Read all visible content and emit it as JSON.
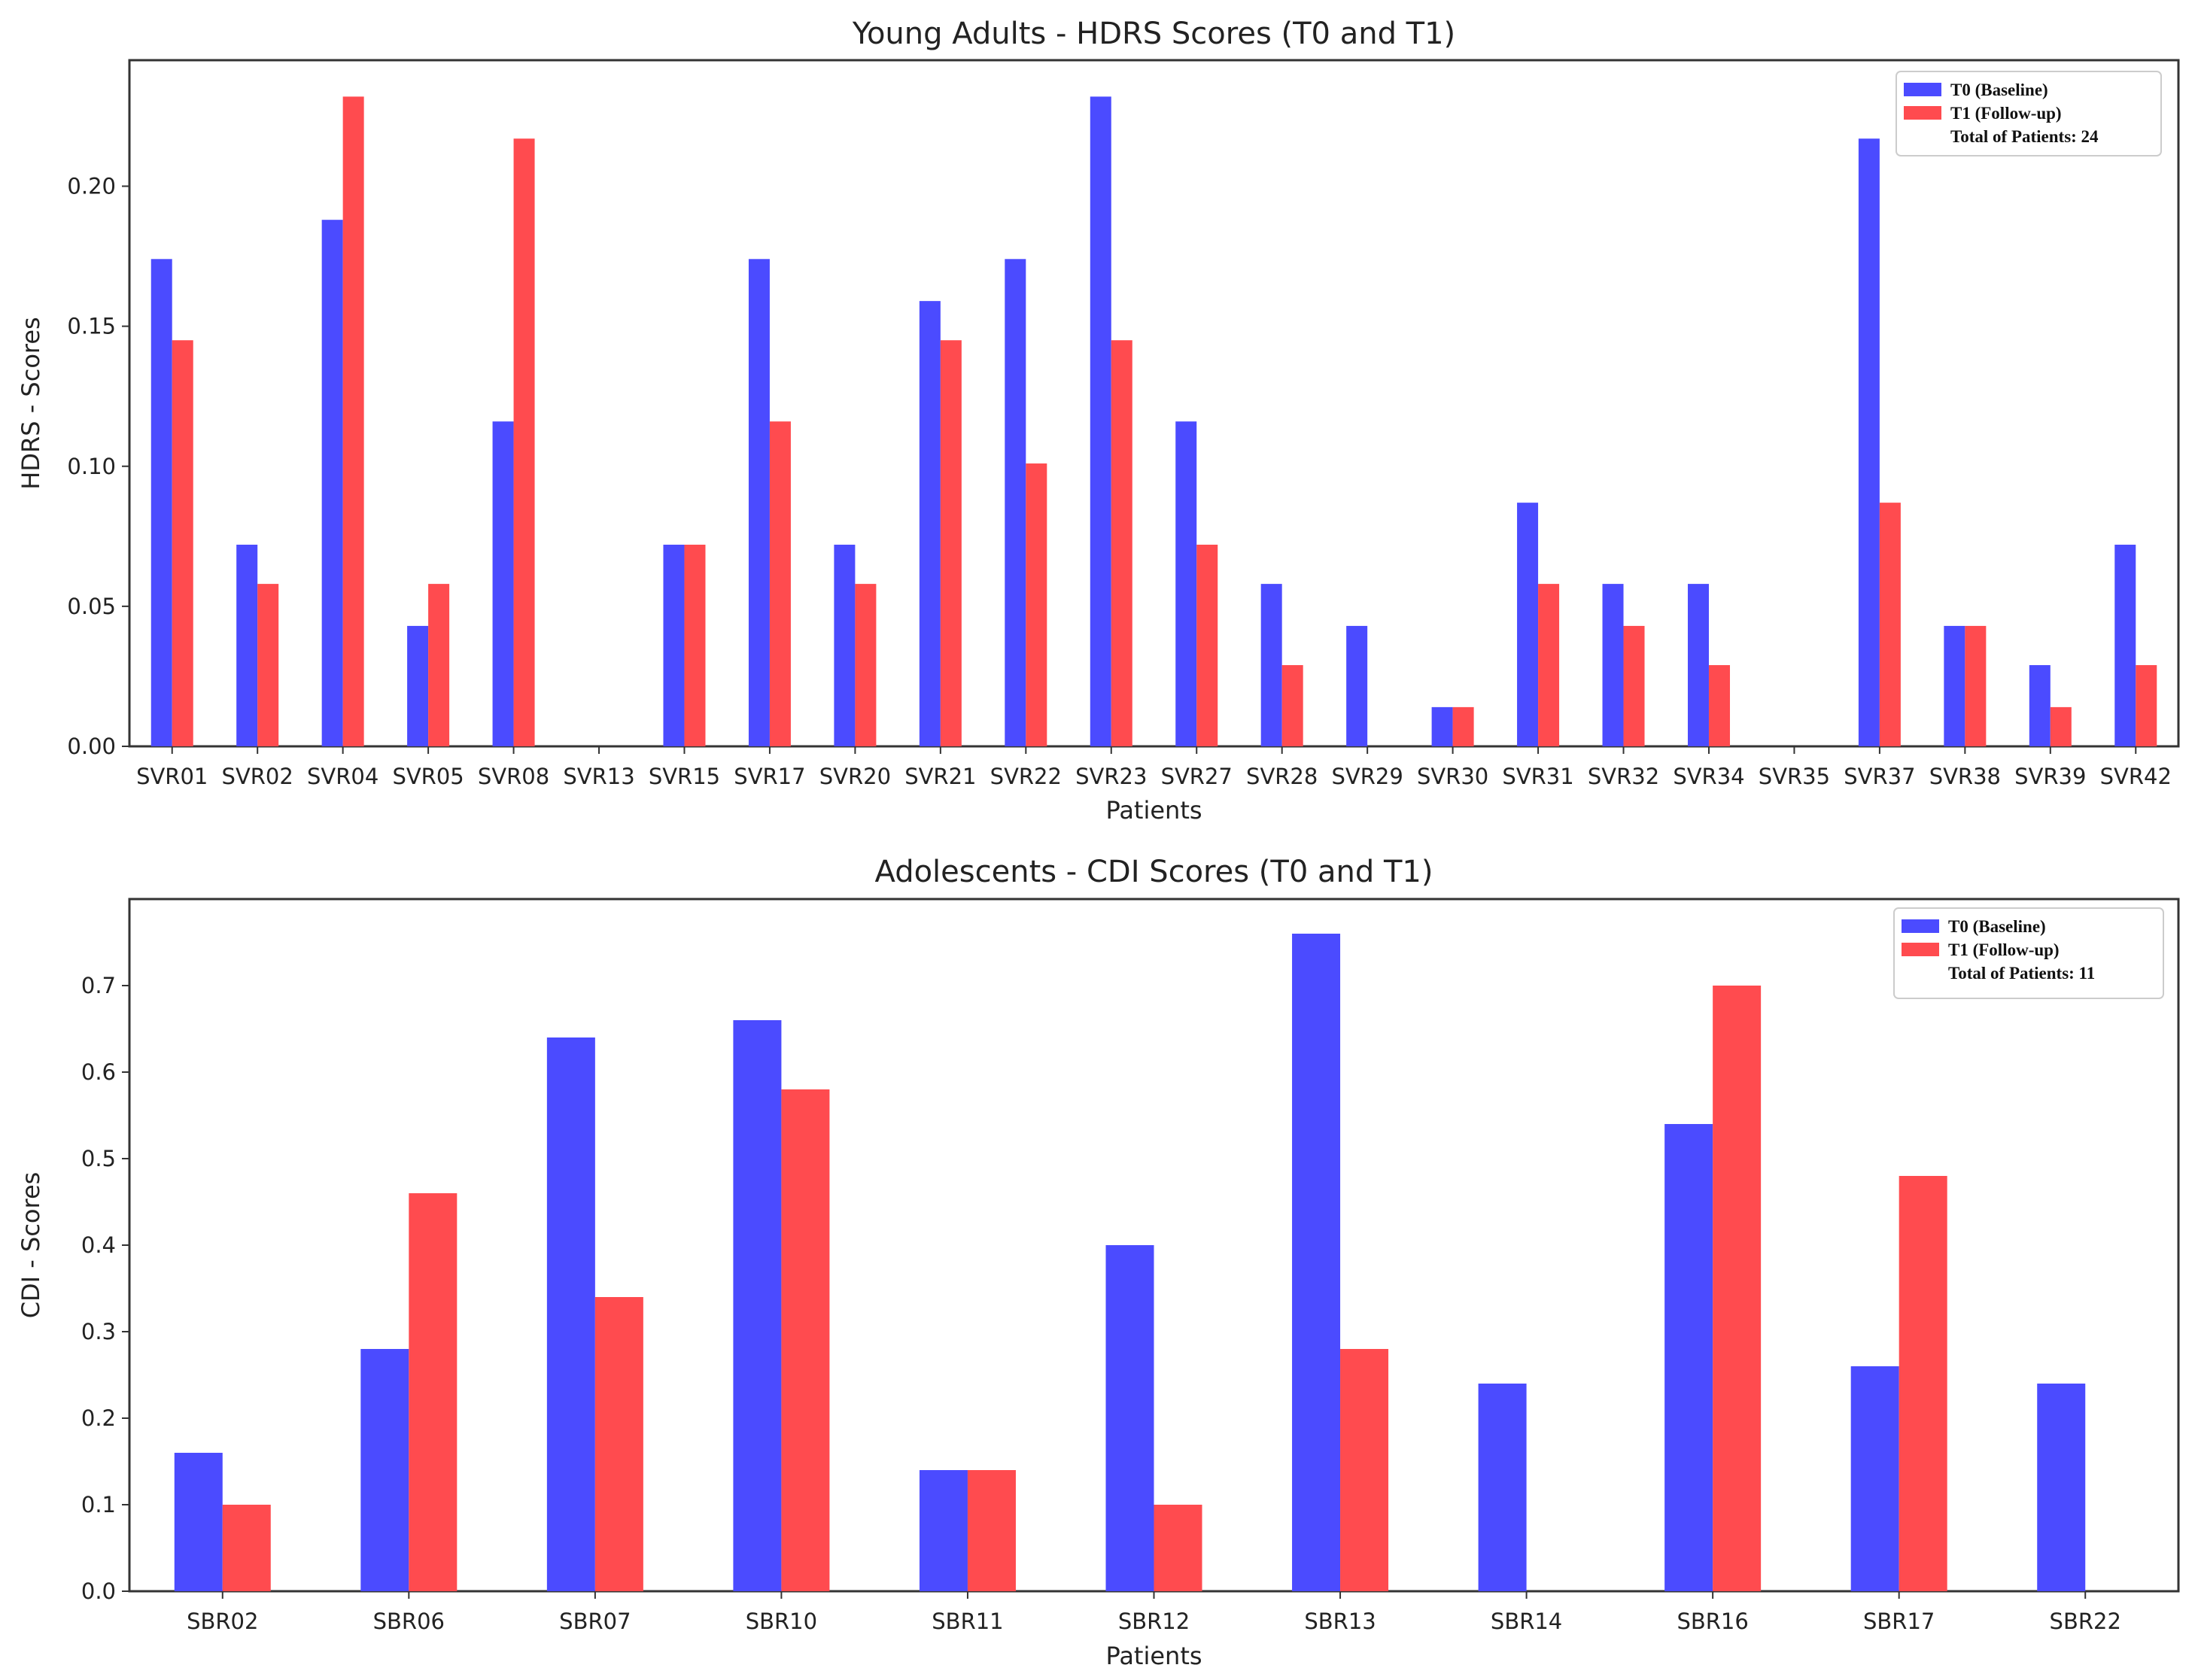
{
  "colors": {
    "t0": "#4B4BFF",
    "t1": "#FF4B4F",
    "axis": "#333333"
  },
  "chart_data": [
    {
      "type": "bar",
      "title": "Young Adults - HDRS Scores (T0 and T1)",
      "xlabel": "Patients",
      "ylabel": "HDRS - Scores",
      "ylim": [
        0,
        0.245
      ],
      "yticks": [
        "0.00",
        "0.05",
        "0.10",
        "0.15",
        "0.20"
      ],
      "ytick_values": [
        0,
        0.05,
        0.1,
        0.15,
        0.2
      ],
      "legend": {
        "position": "top-right",
        "entries": [
          "T0 (Baseline)",
          "T1 (Follow-up)"
        ],
        "note": "Total of Patients: 24"
      },
      "categories": [
        "SVR01",
        "SVR02",
        "SVR04",
        "SVR05",
        "SVR08",
        "SVR13",
        "SVR15",
        "SVR17",
        "SVR20",
        "SVR21",
        "SVR22",
        "SVR23",
        "SVR27",
        "SVR28",
        "SVR29",
        "SVR30",
        "SVR31",
        "SVR32",
        "SVR34",
        "SVR35",
        "SVR37",
        "SVR38",
        "SVR39",
        "SVR42"
      ],
      "series": [
        {
          "name": "T0 (Baseline)",
          "values": [
            0.174,
            0.072,
            0.188,
            0.043,
            0.116,
            0,
            0.072,
            0.174,
            0.072,
            0.159,
            0.174,
            0.232,
            0.116,
            0.058,
            0.043,
            0.014,
            0.087,
            0.058,
            0.058,
            0,
            0.217,
            0.043,
            0.029,
            0.072
          ]
        },
        {
          "name": "T1 (Follow-up)",
          "values": [
            0.145,
            0.058,
            0.232,
            0.058,
            0.217,
            0,
            0.072,
            0.116,
            0.058,
            0.145,
            0.101,
            0.145,
            0.072,
            0.029,
            0,
            0.014,
            0.058,
            0.043,
            0.029,
            0,
            0.087,
            0.043,
            0.014,
            0.029
          ]
        }
      ]
    },
    {
      "type": "bar",
      "title": "Adolescents - CDI Scores (T0 and T1)",
      "xlabel": "Patients",
      "ylabel": "CDI - Scores",
      "ylim": [
        0,
        0.8
      ],
      "yticks": [
        "0.0",
        "0.1",
        "0.2",
        "0.3",
        "0.4",
        "0.5",
        "0.6",
        "0.7"
      ],
      "ytick_values": [
        0,
        0.1,
        0.2,
        0.3,
        0.4,
        0.5,
        0.6,
        0.7
      ],
      "legend": {
        "position": "top-right",
        "entries": [
          "T0 (Baseline)",
          "T1 (Follow-up)"
        ],
        "note": "Total of Patients: 11"
      },
      "categories": [
        "SBR02",
        "SBR06",
        "SBR07",
        "SBR10",
        "SBR11",
        "SBR12",
        "SBR13",
        "SBR14",
        "SBR16",
        "SBR17",
        "SBR22"
      ],
      "series": [
        {
          "name": "T0 (Baseline)",
          "values": [
            0.16,
            0.28,
            0.64,
            0.66,
            0.14,
            0.4,
            0.76,
            0.24,
            0.54,
            0.26,
            0.24
          ]
        },
        {
          "name": "T1 (Follow-up)",
          "values": [
            0.1,
            0.46,
            0.34,
            0.58,
            0.14,
            0.1,
            0.28,
            0,
            0.7,
            0.48,
            0
          ]
        }
      ]
    }
  ]
}
